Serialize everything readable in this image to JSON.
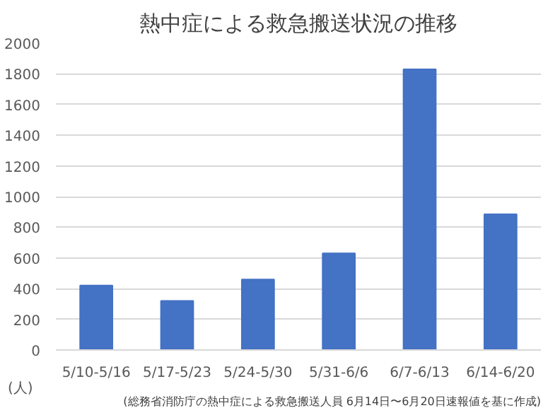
{
  "chart_data": {
    "type": "bar",
    "title": "熱中症による救急搬送状況の推移",
    "ylabel": "(人)",
    "categories": [
      "5/10-5/16",
      "5/17-5/23",
      "5/24-5/30",
      "5/31-6/6",
      "6/7-6/13",
      "6/14-6/20"
    ],
    "values": [
      420,
      320,
      460,
      630,
      1830,
      885
    ],
    "color": "#4472c4",
    "ylim": [
      0,
      2000
    ],
    "yticks": [
      0,
      200,
      400,
      600,
      800,
      1000,
      1200,
      1400,
      1600,
      1800,
      2000
    ],
    "grid": "y",
    "annotations": [
      "(総務省消防庁の熱中症による救急搬送人員 6月14日〜6月20日速報値を基に作成)"
    ]
  }
}
